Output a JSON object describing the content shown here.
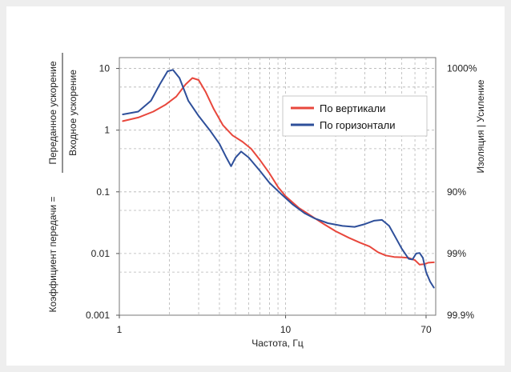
{
  "chart_data": {
    "type": "line",
    "xlabel": "Частота, Гц",
    "ylabel_numerator": "Переданное ускорение",
    "ylabel_denominator": "Входное ускорение",
    "ylabel_prefix": "Коэффициент передачи =",
    "y2label": "Изоляция | Усиление",
    "x_scale": "log",
    "y_scale": "log",
    "xlim": [
      1,
      80
    ],
    "ylim": [
      0.001,
      15
    ],
    "x_ticks": [
      {
        "value": 1,
        "label": "1"
      },
      {
        "value": 10,
        "label": "10"
      },
      {
        "value": 70,
        "label": "70"
      }
    ],
    "y_ticks": [
      {
        "value": 10,
        "label": "10"
      },
      {
        "value": 1,
        "label": "1"
      },
      {
        "value": 0.1,
        "label": "0.1"
      },
      {
        "value": 0.01,
        "label": "0.01"
      },
      {
        "value": 0.001,
        "label": "0.001"
      }
    ],
    "y2_ticks": [
      {
        "value": 10,
        "label": "1000%"
      },
      {
        "value": 0.1,
        "label": "90%"
      },
      {
        "value": 0.01,
        "label": "99%"
      },
      {
        "value": 0.001,
        "label": "99.9%"
      }
    ],
    "grid": true,
    "legend_position": "top-right",
    "series": [
      {
        "name": "По вертикали",
        "color": "#e8473c",
        "points": [
          [
            1.05,
            1.4
          ],
          [
            1.3,
            1.6
          ],
          [
            1.6,
            2.0
          ],
          [
            1.9,
            2.6
          ],
          [
            2.2,
            3.5
          ],
          [
            2.5,
            5.5
          ],
          [
            2.75,
            7.0
          ],
          [
            3.0,
            6.5
          ],
          [
            3.3,
            4.2
          ],
          [
            3.7,
            2.2
          ],
          [
            4.2,
            1.2
          ],
          [
            4.8,
            0.82
          ],
          [
            5.5,
            0.65
          ],
          [
            6.2,
            0.5
          ],
          [
            7.0,
            0.33
          ],
          [
            8.0,
            0.2
          ],
          [
            9.0,
            0.12
          ],
          [
            10,
            0.085
          ],
          [
            12,
            0.055
          ],
          [
            14,
            0.042
          ],
          [
            17,
            0.03
          ],
          [
            20,
            0.023
          ],
          [
            24,
            0.018
          ],
          [
            28,
            0.015
          ],
          [
            32,
            0.013
          ],
          [
            36,
            0.0105
          ],
          [
            40,
            0.0093
          ],
          [
            45,
            0.0088
          ],
          [
            50,
            0.0087
          ],
          [
            55,
            0.0085
          ],
          [
            60,
            0.0078
          ],
          [
            64,
            0.0066
          ],
          [
            68,
            0.0067
          ],
          [
            72,
            0.0071
          ],
          [
            78,
            0.0072
          ]
        ]
      },
      {
        "name": "По горизонтали",
        "color": "#2e4f9a",
        "points": [
          [
            1.05,
            1.8
          ],
          [
            1.3,
            2.0
          ],
          [
            1.55,
            3.0
          ],
          [
            1.75,
            5.5
          ],
          [
            1.95,
            9.0
          ],
          [
            2.1,
            9.5
          ],
          [
            2.3,
            7.0
          ],
          [
            2.6,
            3.0
          ],
          [
            3.0,
            1.7
          ],
          [
            3.5,
            1.0
          ],
          [
            4.0,
            0.6
          ],
          [
            4.4,
            0.36
          ],
          [
            4.7,
            0.26
          ],
          [
            5.0,
            0.36
          ],
          [
            5.4,
            0.45
          ],
          [
            6.0,
            0.36
          ],
          [
            7.0,
            0.22
          ],
          [
            8.0,
            0.14
          ],
          [
            9.5,
            0.09
          ],
          [
            11,
            0.063
          ],
          [
            13,
            0.045
          ],
          [
            15,
            0.037
          ],
          [
            18,
            0.031
          ],
          [
            22,
            0.028
          ],
          [
            26,
            0.027
          ],
          [
            30,
            0.03
          ],
          [
            34,
            0.034
          ],
          [
            38,
            0.035
          ],
          [
            42,
            0.028
          ],
          [
            46,
            0.018
          ],
          [
            50,
            0.012
          ],
          [
            55,
            0.0082
          ],
          [
            58,
            0.008
          ],
          [
            61,
            0.01
          ],
          [
            64,
            0.0102
          ],
          [
            67,
            0.0085
          ],
          [
            70,
            0.005
          ],
          [
            74,
            0.0035
          ],
          [
            78,
            0.0028
          ]
        ]
      }
    ]
  }
}
